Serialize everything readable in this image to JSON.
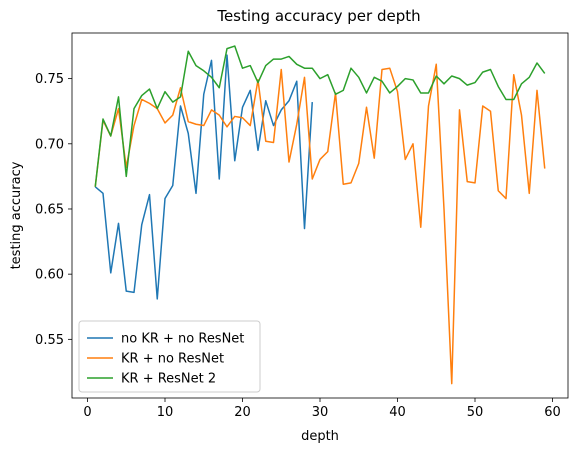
{
  "chart_data": {
    "type": "line",
    "title": "Testing accuracy per depth",
    "xlabel": "depth",
    "ylabel": "testing accuracy",
    "xlim": [
      -2,
      62
    ],
    "ylim": [
      0.505,
      0.785
    ],
    "xticks": [
      0,
      10,
      20,
      30,
      40,
      50,
      60
    ],
    "yticks": [
      0.55,
      0.6,
      0.65,
      0.7,
      0.75
    ],
    "ytick_labels": [
      "0.55",
      "0.60",
      "0.65",
      "0.70",
      "0.75"
    ],
    "grid": false,
    "legend_position": "lower-left",
    "series": [
      {
        "name": "no KR + no ResNet",
        "color": "#1f77b4",
        "x": [
          1,
          2,
          3,
          4,
          5,
          6,
          7,
          8,
          9,
          10,
          11,
          12,
          13,
          14,
          15,
          16,
          17,
          18,
          19,
          20,
          21,
          22,
          23,
          24,
          25,
          26,
          27,
          28,
          29
        ],
        "values": [
          0.667,
          0.662,
          0.601,
          0.639,
          0.587,
          0.586,
          0.638,
          0.661,
          0.581,
          0.658,
          0.668,
          0.729,
          0.708,
          0.662,
          0.738,
          0.764,
          0.673,
          0.768,
          0.687,
          0.728,
          0.741,
          0.695,
          0.733,
          0.714,
          0.726,
          0.733,
          0.748,
          0.635,
          0.732
        ]
      },
      {
        "name": "KR + no ResNet",
        "color": "#ff7f0e",
        "x": [
          1,
          2,
          3,
          4,
          5,
          6,
          7,
          8,
          9,
          10,
          11,
          12,
          13,
          14,
          15,
          16,
          17,
          18,
          19,
          20,
          21,
          22,
          23,
          24,
          25,
          26,
          27,
          28,
          29,
          30,
          31,
          32,
          33,
          34,
          35,
          36,
          37,
          38,
          39,
          40,
          41,
          42,
          43,
          44,
          45,
          46,
          47,
          48,
          49,
          50,
          51,
          52,
          53,
          54,
          55,
          56,
          57,
          58,
          59
        ],
        "values": [
          0.667,
          0.718,
          0.706,
          0.727,
          0.682,
          0.714,
          0.734,
          0.731,
          0.727,
          0.716,
          0.722,
          0.743,
          0.717,
          0.715,
          0.714,
          0.726,
          0.722,
          0.713,
          0.721,
          0.72,
          0.714,
          0.749,
          0.702,
          0.701,
          0.757,
          0.686,
          0.715,
          0.751,
          0.673,
          0.688,
          0.694,
          0.739,
          0.669,
          0.67,
          0.685,
          0.728,
          0.689,
          0.757,
          0.758,
          0.74,
          0.688,
          0.7,
          0.636,
          0.729,
          0.761,
          0.65,
          0.516,
          0.726,
          0.671,
          0.67,
          0.729,
          0.725,
          0.664,
          0.658,
          0.753,
          0.722,
          0.662,
          0.741,
          0.681
        ]
      },
      {
        "name": "KR + ResNet 2",
        "color": "#2ca02c",
        "x": [
          1,
          2,
          3,
          4,
          5,
          6,
          7,
          8,
          9,
          10,
          11,
          12,
          13,
          14,
          15,
          16,
          17,
          18,
          19,
          20,
          21,
          22,
          23,
          24,
          25,
          26,
          27,
          28,
          29,
          30,
          31,
          32,
          33,
          34,
          35,
          36,
          37,
          38,
          39,
          40,
          41,
          42,
          43,
          44,
          45,
          46,
          47,
          48,
          49,
          50,
          51,
          52,
          53,
          54,
          55,
          56,
          57,
          58,
          59
        ],
        "values": [
          0.667,
          0.719,
          0.706,
          0.736,
          0.675,
          0.727,
          0.737,
          0.742,
          0.727,
          0.74,
          0.732,
          0.736,
          0.771,
          0.76,
          0.756,
          0.751,
          0.743,
          0.773,
          0.775,
          0.758,
          0.76,
          0.747,
          0.76,
          0.765,
          0.765,
          0.767,
          0.761,
          0.758,
          0.758,
          0.75,
          0.753,
          0.738,
          0.741,
          0.758,
          0.751,
          0.739,
          0.751,
          0.748,
          0.739,
          0.744,
          0.75,
          0.749,
          0.739,
          0.739,
          0.752,
          0.746,
          0.752,
          0.75,
          0.745,
          0.747,
          0.755,
          0.757,
          0.744,
          0.734,
          0.734,
          0.746,
          0.751,
          0.762,
          0.754
        ]
      }
    ]
  }
}
